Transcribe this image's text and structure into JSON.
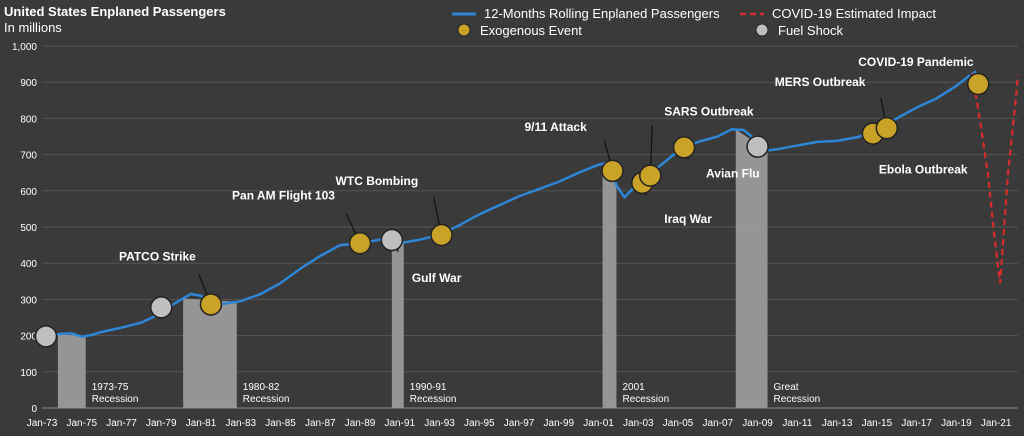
{
  "title": "United States Enplaned Passengers",
  "subtitle": "In millions",
  "colors": {
    "background": "#3a3a3a",
    "line": "#2e86d6",
    "covid": "#d62c2c",
    "exogenous": "#c9a227",
    "fuel": "#bfbfbf",
    "recession": "#9a9a9a",
    "grid": "#555555"
  },
  "legend": [
    {
      "label": "12-Months Rolling Enplaned Passengers",
      "symbol": "line"
    },
    {
      "label": "COVID-19 Estimated Impact",
      "symbol": "dashed"
    },
    {
      "label": "Exogenous Event",
      "symbol": "gold-circle"
    },
    {
      "label": "Fuel Shock",
      "symbol": "grey-circle"
    }
  ],
  "chart_data": {
    "type": "line",
    "ylim": [
      0,
      1000
    ],
    "xlim": [
      1973.0,
      2022.1
    ],
    "y_ticks": [
      "0",
      "100",
      "200",
      "300",
      "400",
      "500",
      "600",
      "700",
      "800",
      "900",
      "1,000"
    ],
    "x_ticks": [
      "Jan-73",
      "Jan-75",
      "Jan-77",
      "Jan-79",
      "Jan-81",
      "Jan-83",
      "Jan-85",
      "Jan-87",
      "Jan-89",
      "Jan-91",
      "Jan-93",
      "Jan-95",
      "Jan-97",
      "Jan-99",
      "Jan-01",
      "Jan-03",
      "Jan-05",
      "Jan-07",
      "Jan-09",
      "Jan-11",
      "Jan-13",
      "Jan-15",
      "Jan-17",
      "Jan-19",
      "Jan-21"
    ],
    "series": [
      {
        "name": "12-Months Rolling Enplaned Passengers",
        "points": [
          [
            1973.0,
            198
          ],
          [
            1974.0,
            205
          ],
          [
            1974.5,
            206
          ],
          [
            1975.0,
            197
          ],
          [
            1975.5,
            202
          ],
          [
            1976.0,
            210
          ],
          [
            1977.0,
            222
          ],
          [
            1978.0,
            236
          ],
          [
            1979.0,
            262
          ],
          [
            1979.7,
            290
          ],
          [
            1980.5,
            315
          ],
          [
            1981.0,
            310
          ],
          [
            1981.5,
            292
          ],
          [
            1982.0,
            287
          ],
          [
            1983.0,
            295
          ],
          [
            1984.0,
            315
          ],
          [
            1985.0,
            345
          ],
          [
            1986.0,
            385
          ],
          [
            1987.0,
            420
          ],
          [
            1988.0,
            450
          ],
          [
            1988.5,
            452
          ],
          [
            1989.0,
            455
          ],
          [
            1990.0,
            465
          ],
          [
            1990.7,
            468
          ],
          [
            1991.0,
            455
          ],
          [
            1992.0,
            465
          ],
          [
            1993.0,
            478
          ],
          [
            1994.0,
            505
          ],
          [
            1995.0,
            535
          ],
          [
            1996.0,
            560
          ],
          [
            1997.0,
            585
          ],
          [
            1998.0,
            605
          ],
          [
            1999.0,
            625
          ],
          [
            2000.0,
            650
          ],
          [
            2001.0,
            672
          ],
          [
            2001.6,
            680
          ],
          [
            2001.9,
            615
          ],
          [
            2002.3,
            582
          ],
          [
            2002.8,
            610
          ],
          [
            2003.3,
            630
          ],
          [
            2004.0,
            665
          ],
          [
            2005.0,
            710
          ],
          [
            2006.0,
            735
          ],
          [
            2007.0,
            750
          ],
          [
            2007.7,
            770
          ],
          [
            2008.3,
            768
          ],
          [
            2008.7,
            750
          ],
          [
            2009.3,
            710
          ],
          [
            2010.0,
            715
          ],
          [
            2011.0,
            725
          ],
          [
            2012.0,
            735
          ],
          [
            2013.0,
            738
          ],
          [
            2014.0,
            748
          ],
          [
            2014.8,
            762
          ],
          [
            2015.3,
            775
          ],
          [
            2016.0,
            800
          ],
          [
            2017.0,
            830
          ],
          [
            2018.0,
            855
          ],
          [
            2019.0,
            890
          ],
          [
            2019.7,
            920
          ],
          [
            2020.0,
            930
          ]
        ]
      },
      {
        "name": "COVID-19 Estimated Impact",
        "points": [
          [
            2019.8,
            925
          ],
          [
            2020.2,
            790
          ],
          [
            2020.6,
            640
          ],
          [
            2020.9,
            480
          ],
          [
            2021.2,
            345
          ],
          [
            2021.6,
            650
          ],
          [
            2022.0,
            860
          ],
          [
            2022.1,
            920
          ]
        ]
      }
    ],
    "recessions": [
      {
        "start": 1973.8,
        "end": 1975.2,
        "label": "1973-75 Recession"
      },
      {
        "start": 1980.1,
        "end": 1982.8,
        "label": "1980-82 Recession"
      },
      {
        "start": 1990.6,
        "end": 1991.2,
        "label": "1990-91 Recession"
      },
      {
        "start": 2001.2,
        "end": 2001.9,
        "label": "2001 Recession"
      },
      {
        "start": 2007.9,
        "end": 2009.5,
        "label": "Great Recession"
      }
    ],
    "events": [
      {
        "x": 1973.2,
        "y": 198,
        "type": "fuel",
        "label": ""
      },
      {
        "x": 1979.0,
        "y": 278,
        "type": "fuel",
        "label": ""
      },
      {
        "x": 1981.5,
        "y": 286,
        "type": "exogenous",
        "label": "PATCO Strike"
      },
      {
        "x": 1989.0,
        "y": 455,
        "type": "exogenous",
        "label": "Pan AM Flight 103"
      },
      {
        "x": 1990.6,
        "y": 464,
        "type": "fuel",
        "label": ""
      },
      {
        "x": 1993.1,
        "y": 478,
        "type": "exogenous",
        "label": "WTC Bombing"
      },
      {
        "x": 1990.9,
        "y": 464,
        "type": "none",
        "label": "Gulf War"
      },
      {
        "x": 2001.7,
        "y": 655,
        "type": "exogenous",
        "label": "9/11 Attack"
      },
      {
        "x": 2003.2,
        "y": 622,
        "type": "exogenous",
        "label": "Iraq War"
      },
      {
        "x": 2003.6,
        "y": 642,
        "type": "exogenous",
        "label": "SARS Outbreak"
      },
      {
        "x": 2005.3,
        "y": 720,
        "type": "exogenous",
        "label": "Avian Flu"
      },
      {
        "x": 2009.0,
        "y": 722,
        "type": "fuel",
        "label": ""
      },
      {
        "x": 2014.8,
        "y": 758,
        "type": "exogenous",
        "label": "Ebola Outbreak"
      },
      {
        "x": 2015.5,
        "y": 773,
        "type": "exogenous",
        "label": "MERS Outbreak"
      },
      {
        "x": 2020.1,
        "y": 895,
        "type": "exogenous",
        "label": "COVID-19 Pandemic"
      }
    ]
  }
}
